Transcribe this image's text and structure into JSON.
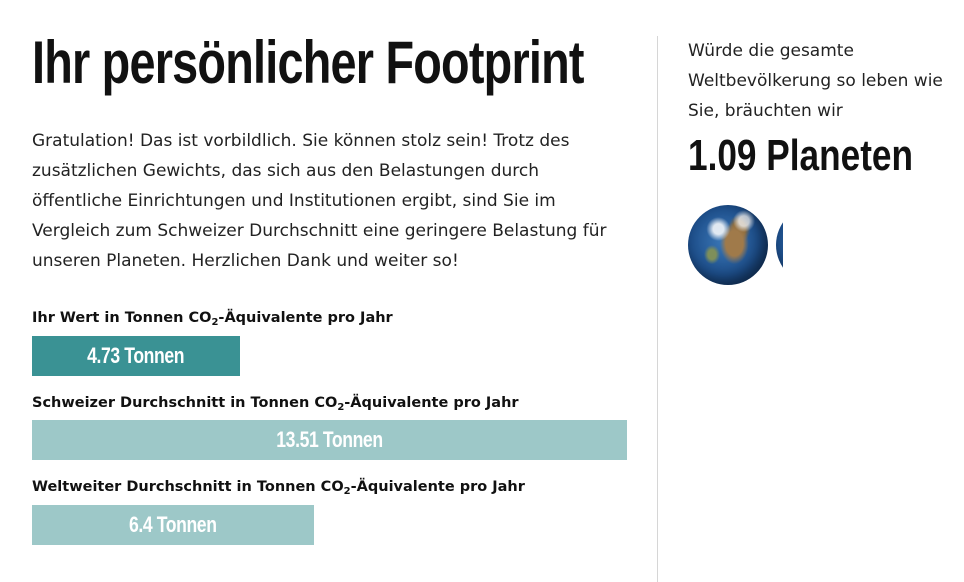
{
  "title": "Ihr persönlicher Footprint",
  "intro": "Gratulation! Das ist vorbildlich. Sie können stolz sein! Trotz des zusätzlichen Gewichts, das sich aus den Belastungen durch öffentliche Einrichtungen und Institutionen ergibt, sind Sie im Vergleich zum Schweizer Durchschnitt eine geringere Belastung für unseren Planeten. Herzlichen Dank und weiter so!",
  "bars": {
    "max_value": 13.51,
    "items": [
      {
        "label_pre": "Ihr Wert in Tonnen CO",
        "label_sub": "2",
        "label_post": "-Äquivalente pro Jahr",
        "value": 4.73,
        "value_label": "4.73 Tonnen",
        "color": "#3a9294"
      },
      {
        "label_pre": "Schweizer Durchschnitt in Tonnen CO",
        "label_sub": "2",
        "label_post": "-Äquivalente pro Jahr",
        "value": 13.51,
        "value_label": "13.51 Tonnen",
        "color": "#9dc8c8"
      },
      {
        "label_pre": "Weltweiter Durchschnitt in Tonnen CO",
        "label_sub": "2",
        "label_post": "-Äquivalente pro Jahr",
        "value": 6.4,
        "value_label": "6.4 Tonnen",
        "color": "#9dc8c8"
      }
    ]
  },
  "side": {
    "text": "Würde die gesamte Weltbevölkerung so leben wie Sie, bräuchten wir",
    "planets_label": "1.09 Planeten",
    "planets_value": 1.09,
    "globe_icon": "earth-globe-icon"
  }
}
